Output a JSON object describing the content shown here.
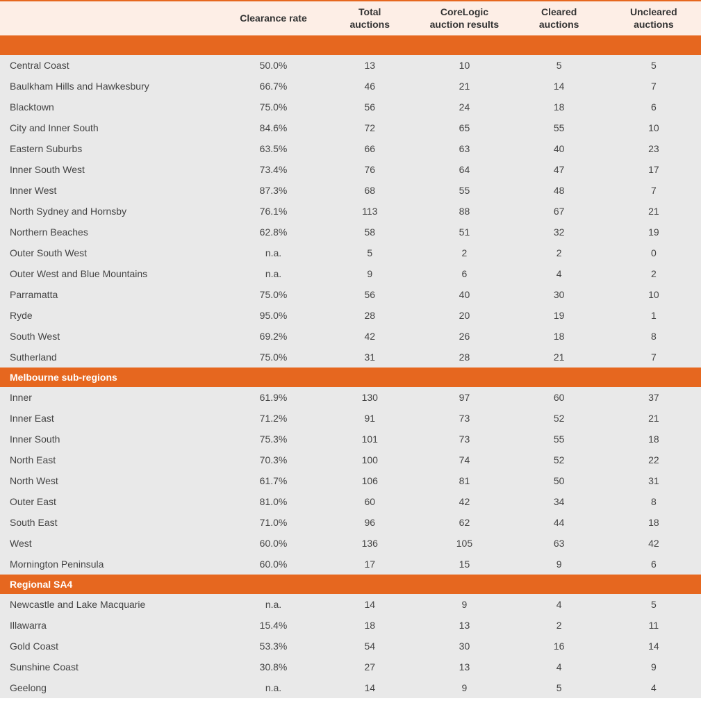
{
  "colors": {
    "accent": "#e6671f",
    "header_bg": "#fdeee6",
    "row_alt": "#e9e9e9",
    "row": "#ffffff",
    "text": "#333333"
  },
  "columns": [
    "",
    "Clearance rate",
    "Total auctions",
    "CoreLogic auction results",
    "Cleared auctions",
    "Uncleared auctions"
  ],
  "sections": [
    {
      "title": "",
      "rows": [
        [
          "Central Coast",
          "50.0%",
          "13",
          "10",
          "5",
          "5"
        ],
        [
          "Baulkham Hills and Hawkesbury",
          "66.7%",
          "46",
          "21",
          "14",
          "7"
        ],
        [
          "Blacktown",
          "75.0%",
          "56",
          "24",
          "18",
          "6"
        ],
        [
          "City and Inner South",
          "84.6%",
          "72",
          "65",
          "55",
          "10"
        ],
        [
          "Eastern Suburbs",
          "63.5%",
          "66",
          "63",
          "40",
          "23"
        ],
        [
          "Inner South West",
          "73.4%",
          "76",
          "64",
          "47",
          "17"
        ],
        [
          "Inner West",
          "87.3%",
          "68",
          "55",
          "48",
          "7"
        ],
        [
          "North Sydney and Hornsby",
          "76.1%",
          "113",
          "88",
          "67",
          "21"
        ],
        [
          "Northern Beaches",
          "62.8%",
          "58",
          "51",
          "32",
          "19"
        ],
        [
          "Outer South West",
          "n.a.",
          "5",
          "2",
          "2",
          "0"
        ],
        [
          "Outer West and Blue Mountains",
          "n.a.",
          "9",
          "6",
          "4",
          "2"
        ],
        [
          "Parramatta",
          "75.0%",
          "56",
          "40",
          "30",
          "10"
        ],
        [
          "Ryde",
          "95.0%",
          "28",
          "20",
          "19",
          "1"
        ],
        [
          "South West",
          "69.2%",
          "42",
          "26",
          "18",
          "8"
        ],
        [
          "Sutherland",
          "75.0%",
          "31",
          "28",
          "21",
          "7"
        ]
      ]
    },
    {
      "title": "Melbourne sub-regions",
      "rows": [
        [
          "Inner",
          "61.9%",
          "130",
          "97",
          "60",
          "37"
        ],
        [
          "Inner East",
          "71.2%",
          "91",
          "73",
          "52",
          "21"
        ],
        [
          "Inner South",
          "75.3%",
          "101",
          "73",
          "55",
          "18"
        ],
        [
          "North East",
          "70.3%",
          "100",
          "74",
          "52",
          "22"
        ],
        [
          "North West",
          "61.7%",
          "106",
          "81",
          "50",
          "31"
        ],
        [
          "Outer East",
          "81.0%",
          "60",
          "42",
          "34",
          "8"
        ],
        [
          "South East",
          "71.0%",
          "96",
          "62",
          "44",
          "18"
        ],
        [
          "West",
          "60.0%",
          "136",
          "105",
          "63",
          "42"
        ],
        [
          "Mornington Peninsula",
          "60.0%",
          "17",
          "15",
          "9",
          "6"
        ]
      ]
    },
    {
      "title": "Regional SA4",
      "rows": [
        [
          "Newcastle and Lake Macquarie",
          "n.a.",
          "14",
          "9",
          "4",
          "5"
        ],
        [
          "Illawarra",
          "15.4%",
          "18",
          "13",
          "2",
          "11"
        ],
        [
          "Gold Coast",
          "53.3%",
          "54",
          "30",
          "16",
          "14"
        ],
        [
          "Sunshine Coast",
          "30.8%",
          "27",
          "13",
          "4",
          "9"
        ],
        [
          "Geelong",
          "n.a.",
          "14",
          "9",
          "5",
          "4"
        ]
      ]
    }
  ]
}
